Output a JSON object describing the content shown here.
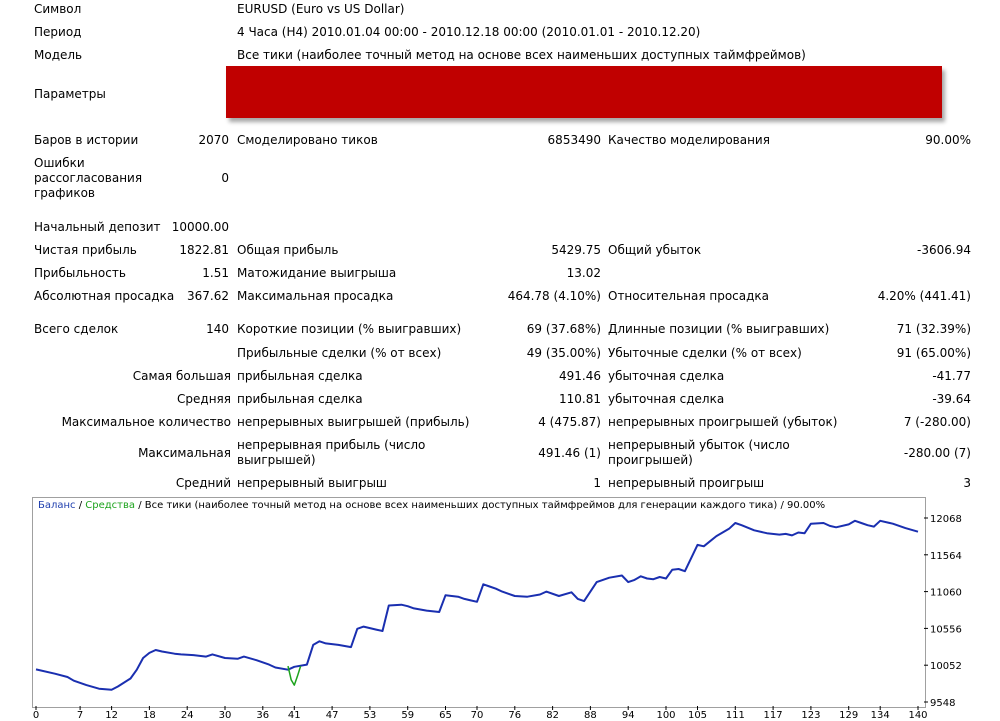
{
  "header": {
    "symbol_label": "Символ",
    "symbol_value": "EURUSD (Euro vs US Dollar)",
    "period_label": "Период",
    "period_value": "4 Часа (H4) 2010.01.04 00:00 - 2010.12.18 00:00 (2010.01.01 - 2010.12.20)",
    "model_label": "Модель",
    "model_value": "Все тики (наиболее точный метод на основе всех наименьших доступных таймфреймов)",
    "params_label": "Параметры",
    "redaction_color": "#c00000"
  },
  "stats": {
    "bars_label": "Баров в истории",
    "bars_value": "2070",
    "ticks_label": "Смоделировано тиков",
    "ticks_value": "6853490",
    "quality_label": "Качество моделирования",
    "quality_value": "90.00%",
    "mismatch_label": "Ошибки рассогласования графиков",
    "mismatch_value": "0",
    "deposit_label": "Начальный депозит",
    "deposit_value": "10000.00",
    "net_label": "Чистая прибыль",
    "net_value": "1822.81",
    "gross_profit_label": "Общая прибыль",
    "gross_profit_value": "5429.75",
    "gross_loss_label": "Общий убыток",
    "gross_loss_value": "-3606.94",
    "pf_label": "Прибыльность",
    "pf_value": "1.51",
    "payoff_label": "Матожидание выигрыша",
    "payoff_value": "13.02",
    "abs_dd_label": "Абсолютная просадка",
    "abs_dd_value": "367.62",
    "max_dd_label": "Максимальная просадка",
    "max_dd_value": "464.78 (4.10%)",
    "rel_dd_label": "Относительная просадка",
    "rel_dd_value": "4.20% (441.41)",
    "total_label": "Всего сделок",
    "total_value": "140",
    "short_label": "Короткие позиции (% выигравших)",
    "short_value": "69 (37.68%)",
    "long_label": "Длинные позиции (% выигравших)",
    "long_value": "71 (32.39%)",
    "profit_trades_label": "Прибыльные сделки (% от всех)",
    "profit_trades_value": "49 (35.00%)",
    "loss_trades_label": "Убыточные сделки (% от всех)",
    "loss_trades_value": "91 (65.00%)",
    "largest_label": "Самая большая",
    "largest_p_label": "прибыльная сделка",
    "largest_p_value": "491.46",
    "largest_l_label": "убыточная сделка",
    "largest_l_value": "-41.77",
    "avg_label": "Средняя",
    "avg_p_label": "прибыльная сделка",
    "avg_p_value": "110.81",
    "avg_l_label": "убыточная сделка",
    "avg_l_value": "-39.64",
    "maxcount_label": "Максимальное количество",
    "maxcount_w_label": "непрерывных выигрышей (прибыль)",
    "maxcount_w_value": "4 (475.87)",
    "maxcount_l_label": "непрерывных проигрышей (убыток)",
    "maxcount_l_value": "7 (-280.00)",
    "maximal_label": "Максимальная",
    "maximal_w_label": "непрерывная прибыль (число выигрышей)",
    "maximal_w_value": "491.46 (1)",
    "maximal_l_label": "непрерывный убыток (число проигрышей)",
    "maximal_l_value": "-280.00 (7)",
    "average_label": "Средний",
    "average_w_label": "непрерывный выигрыш",
    "average_w_value": "1",
    "average_l_label": "непрерывный проигрыш",
    "average_l_value": "3"
  },
  "chart_legend": {
    "balance": "Баланс",
    "sep1": " / ",
    "equity": "Средства",
    "sep2": " / ",
    "rest": "Все тики (наиболее точный метод на основе всех наименьших доступных таймфреймов для генерации каждого тика) / 90.00%"
  },
  "chart_data": {
    "type": "line",
    "xlabel": "",
    "ylabel": "",
    "x_ticks": [
      0,
      7,
      12,
      18,
      24,
      30,
      36,
      41,
      47,
      53,
      59,
      65,
      70,
      76,
      82,
      88,
      94,
      100,
      105,
      111,
      117,
      123,
      129,
      134,
      140
    ],
    "y_ticks": [
      9548,
      10052,
      10556,
      11060,
      11564,
      12068
    ],
    "xlim": [
      0,
      140
    ],
    "ylim": [
      9548,
      12068
    ],
    "colors": {
      "balance": "#1a2fb0",
      "equity": "#1da31d"
    },
    "series": [
      {
        "name": "Баланс",
        "x": [
          0,
          3,
          5,
          6,
          8,
          10,
          12,
          13,
          15,
          16,
          17,
          18,
          19,
          20,
          22,
          23,
          25,
          27,
          28,
          30,
          32,
          33,
          35,
          37,
          38,
          40,
          41,
          43,
          44,
          45,
          46,
          48,
          50,
          51,
          52,
          53,
          54,
          55,
          56,
          58,
          59,
          60,
          62,
          64,
          65,
          67,
          68,
          69,
          70,
          71,
          72,
          73,
          74,
          75,
          76,
          78,
          80,
          81,
          83,
          85,
          86,
          87,
          89,
          91,
          93,
          94,
          95,
          96,
          97,
          98,
          99,
          100,
          101,
          102,
          103,
          105,
          106,
          107,
          108,
          110,
          111,
          112,
          114,
          116,
          118,
          119,
          120,
          121,
          122,
          123,
          125,
          126,
          127,
          129,
          130,
          131,
          132,
          133,
          134,
          136,
          138,
          140
        ],
        "y": [
          9995,
          9935,
          9890,
          9840,
          9780,
          9730,
          9715,
          9760,
          9870,
          9990,
          10150,
          10220,
          10260,
          10240,
          10210,
          10200,
          10190,
          10170,
          10200,
          10150,
          10140,
          10170,
          10120,
          10060,
          10020,
          9990,
          10030,
          10060,
          10330,
          10380,
          10350,
          10330,
          10300,
          10550,
          10580,
          10560,
          10540,
          10520,
          10870,
          10880,
          10860,
          10830,
          10800,
          10780,
          11010,
          10990,
          10960,
          10940,
          10920,
          11160,
          11130,
          11100,
          11060,
          11030,
          11000,
          10990,
          11020,
          11060,
          11000,
          11050,
          10960,
          10930,
          11190,
          11250,
          11280,
          11190,
          11220,
          11270,
          11240,
          11230,
          11260,
          11240,
          11360,
          11370,
          11340,
          11700,
          11680,
          11750,
          11820,
          11920,
          12000,
          11970,
          11900,
          11860,
          11840,
          11850,
          11830,
          11870,
          11860,
          11990,
          12000,
          11960,
          11940,
          11980,
          12030,
          12000,
          11970,
          11950,
          12030,
          11990,
          11930,
          11880
        ]
      },
      {
        "name": "Средства",
        "x": [
          40,
          40.5,
          41,
          41.5,
          42
        ],
        "y": [
          10040,
          9850,
          9780,
          9900,
          10040
        ]
      }
    ]
  }
}
